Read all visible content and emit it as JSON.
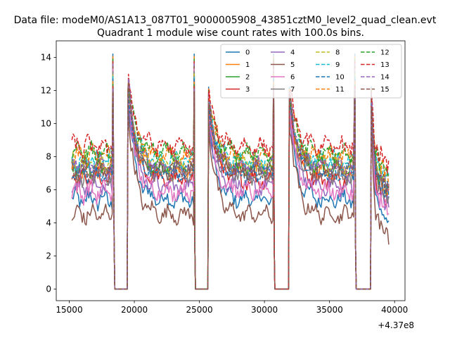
{
  "chart_data": {
    "type": "line",
    "suptitle": "Data file: modeM0/AS1A13_087T01_9000005908_43851cztM0_level2_quad_clean.evt",
    "title": "Quadrant 1 module wise count rates with 100.0s bins.",
    "xlabel": "",
    "ylabel": "",
    "x_offset_label": "+4.37e8",
    "x_offset": 437000000,
    "xlim": [
      14000,
      40800
    ],
    "ylim": [
      -0.7,
      15.0
    ],
    "xticks": [
      15000,
      20000,
      25000,
      30000,
      35000,
      40000
    ],
    "xtick_labels": [
      "15000",
      "20000",
      "25000",
      "30000",
      "35000",
      "40000"
    ],
    "yticks": [
      0,
      2,
      4,
      6,
      8,
      10,
      12,
      14
    ],
    "ytick_labels": [
      "0",
      "2",
      "4",
      "6",
      "8",
      "10",
      "12",
      "14"
    ],
    "grid": false,
    "legend_position": "top-right",
    "legend_columns": 4,
    "bin_seconds": 100,
    "observation_segments": [
      {
        "start": 15200,
        "end": 18300,
        "profile": "flat"
      },
      {
        "start": 19550,
        "end": 24550,
        "profile": "decay",
        "peak_base": 11.3
      },
      {
        "start": 25750,
        "end": 30650,
        "profile": "decay",
        "peak_base": 10.2
      },
      {
        "start": 31950,
        "end": 36900,
        "profile": "decay",
        "peak_base": 10.6
      },
      {
        "start": 38250,
        "end": 39550,
        "profile": "decay",
        "peak_base": 10.0
      }
    ],
    "gap_segments": [
      {
        "start": 18450,
        "end": 19450,
        "value": 0
      },
      {
        "start": 24650,
        "end": 25650,
        "value": 0
      },
      {
        "start": 30750,
        "end": 31850,
        "value": 0
      },
      {
        "start": 37000,
        "end": 38150,
        "value": 0
      }
    ],
    "series": [
      {
        "name": "0",
        "color": "#1f77b4",
        "dash": "solid",
        "base": 5.4
      },
      {
        "name": "1",
        "color": "#ff7f0e",
        "dash": "solid",
        "base": 7.1
      },
      {
        "name": "2",
        "color": "#2ca02c",
        "dash": "solid",
        "base": 7.3
      },
      {
        "name": "3",
        "color": "#d62728",
        "dash": "solid",
        "base": 6.6
      },
      {
        "name": "4",
        "color": "#9467bd",
        "dash": "solid",
        "base": 6.2
      },
      {
        "name": "5",
        "color": "#8c564b",
        "dash": "solid",
        "base": 4.5
      },
      {
        "name": "6",
        "color": "#e377c2",
        "dash": "solid",
        "base": 5.9
      },
      {
        "name": "7",
        "color": "#7f7f7f",
        "dash": "solid",
        "base": 6.9
      },
      {
        "name": "8",
        "color": "#bcbd22",
        "dash": "dashed",
        "base": 7.6
      },
      {
        "name": "9",
        "color": "#17becf",
        "dash": "dashed",
        "base": 7.8
      },
      {
        "name": "10",
        "color": "#1f77b4",
        "dash": "dashed",
        "base": 7.0
      },
      {
        "name": "11",
        "color": "#ff7f0e",
        "dash": "dashed",
        "base": 8.0
      },
      {
        "name": "12",
        "color": "#2ca02c",
        "dash": "dashed",
        "base": 8.2
      },
      {
        "name": "13",
        "color": "#d62728",
        "dash": "dashed",
        "base": 8.6
      },
      {
        "name": "14",
        "color": "#9467bd",
        "dash": "dashed",
        "base": 7.4
      },
      {
        "name": "15",
        "color": "#8c564b",
        "dash": "dashed",
        "base": 7.2
      }
    ]
  }
}
